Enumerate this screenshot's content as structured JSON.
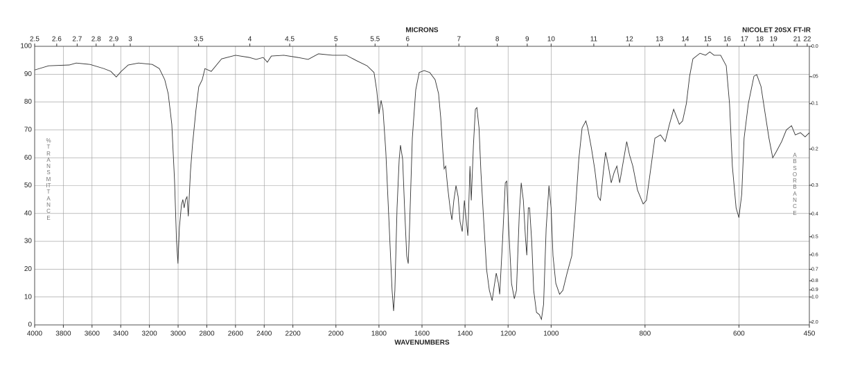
{
  "chart_data": {
    "type": "line",
    "title": "MICRONS",
    "subtitle": "NICOLET 20SX FT-IR",
    "xlabel": "WAVENUMBERS",
    "ylabel": "%TRANSMITTANCE",
    "y2label": "ABSORBANCE",
    "color": "#333333",
    "grid": true,
    "xlim": [
      4000,
      450
    ],
    "x_scale_breaks": [
      2200,
      1000
    ],
    "xticks": [
      4000,
      3800,
      3600,
      3400,
      3200,
      3000,
      2800,
      2600,
      2400,
      2200,
      2000,
      1800,
      1600,
      1400,
      1200,
      1000,
      800,
      600,
      450
    ],
    "x2scale": "microns",
    "x2ticks": [
      2.5,
      2.6,
      2.7,
      2.8,
      2.9,
      3,
      3.5,
      4,
      4.5,
      5,
      5.5,
      6,
      7,
      8,
      9,
      10,
      11,
      12,
      13,
      14,
      15,
      16,
      17,
      18,
      19,
      21,
      22
    ],
    "ylim": [
      0,
      100
    ],
    "yticks": [
      0,
      10,
      20,
      30,
      40,
      50,
      60,
      70,
      80,
      90,
      100
    ],
    "y2scale": "absorbance",
    "y2ticks": [
      {
        "value": 0,
        "label": "0.0"
      },
      {
        "value": 0.05,
        "label": ".05"
      },
      0.1,
      0.2,
      0.3,
      0.4,
      0.5,
      0.6,
      0.7,
      0.8,
      0.9,
      {
        "value": 1,
        "label": "1.0"
      },
      {
        "value": 2,
        "label": "2.0"
      }
    ],
    "x": [
      4000,
      3903,
      3759,
      3710,
      3614,
      3517,
      3469,
      3431,
      3397,
      3348,
      3276,
      3180,
      3131,
      3093,
      3069,
      3044,
      3025,
      3011,
      3001,
      2991,
      2977,
      2967,
      2958,
      2948,
      2938,
      2929,
      2914,
      2900,
      2876,
      2856,
      2832,
      2813,
      2769,
      2697,
      2600,
      2504,
      2456,
      2407,
      2378,
      2350,
      2263,
      2177,
      2129,
      2081,
      2016,
      1952,
      1903,
      1855,
      1823,
      1810,
      1800,
      1790,
      1781,
      1768,
      1752,
      1739,
      1732,
      1726,
      1716,
      1706,
      1700,
      1690,
      1681,
      1671,
      1664,
      1658,
      1645,
      1629,
      1613,
      1590,
      1564,
      1539,
      1523,
      1513,
      1503,
      1497,
      1490,
      1481,
      1468,
      1461,
      1452,
      1442,
      1432,
      1423,
      1413,
      1403,
      1397,
      1387,
      1377,
      1371,
      1361,
      1352,
      1345,
      1335,
      1326,
      1313,
      1300,
      1287,
      1274,
      1265,
      1255,
      1245,
      1239,
      1226,
      1213,
      1206,
      1197,
      1184,
      1171,
      1161,
      1148,
      1139,
      1129,
      1119,
      1113,
      1106,
      1100,
      1090,
      1081,
      1068,
      1055,
      1045,
      1035,
      1023,
      1010,
      1000,
      996,
      990,
      982,
      975,
      966,
      956,
      948,
      941,
      934,
      926,
      922,
      914,
      907,
      900,
      895,
      889,
      884,
      878,
      872,
      866,
      860,
      854,
      848,
      839,
      833,
      826,
      816,
      804,
      797,
      789,
      779,
      767,
      757,
      748,
      739,
      727,
      720,
      712,
      705,
      698,
      683,
      671,
      662,
      653,
      639,
      627,
      620,
      614,
      606,
      600,
      594,
      589,
      580,
      568,
      562,
      553,
      544,
      536,
      528,
      521,
      509,
      499,
      488,
      480,
      469,
      459,
      450
    ],
    "values": [
      91.5,
      93,
      93.3,
      94,
      93.5,
      92,
      91,
      89,
      91,
      93.3,
      94,
      93.5,
      92,
      88,
      83,
      72,
      52,
      30,
      22,
      35,
      43,
      45,
      42,
      45,
      46,
      39,
      55,
      64.5,
      77,
      85.5,
      88,
      92,
      91,
      95.5,
      96.8,
      96,
      95.3,
      96,
      94.3,
      96.5,
      96.8,
      96,
      95.3,
      97.3,
      96.8,
      96.8,
      94.8,
      93,
      90.6,
      84,
      75.7,
      80.6,
      77,
      62,
      34.7,
      12.4,
      5,
      12.4,
      42,
      59.5,
      64.5,
      59.5,
      42,
      24.8,
      22,
      34.7,
      67,
      84.4,
      90.6,
      91.3,
      90.6,
      88,
      83,
      74.4,
      62,
      56,
      57,
      49.6,
      41,
      37.7,
      44.7,
      50,
      46,
      37,
      33.5,
      44.7,
      39.7,
      32,
      57,
      44.7,
      64.5,
      77.4,
      78,
      70.7,
      54.6,
      37,
      20,
      12.4,
      8.7,
      13.6,
      18.6,
      15,
      11,
      29.8,
      51,
      51.6,
      34.7,
      14.9,
      9.4,
      12.4,
      39.7,
      51,
      44.7,
      31,
      25,
      42,
      42,
      29.8,
      12.4,
      4.5,
      3.7,
      2,
      7.4,
      34.7,
      50,
      42,
      24.8,
      14.9,
      11,
      12.4,
      18.6,
      24.8,
      42,
      59.5,
      70.7,
      73.2,
      70.7,
      63.3,
      55.8,
      46,
      44.7,
      54.6,
      62,
      57,
      51,
      54.6,
      57,
      51,
      57,
      65.8,
      61,
      57,
      48.4,
      43.4,
      44.7,
      54.6,
      67,
      68.2,
      65.8,
      72,
      77.4,
      72,
      73.2,
      79.4,
      89.3,
      95.5,
      97.5,
      96.8,
      98,
      96.8,
      96.8,
      93,
      79.4,
      57,
      42,
      38.5,
      47,
      67,
      79.4,
      89.3,
      89.8,
      85.6,
      75.7,
      67,
      60,
      62,
      65.8,
      70,
      71.5,
      68.2,
      69,
      67.5,
      69
    ]
  }
}
